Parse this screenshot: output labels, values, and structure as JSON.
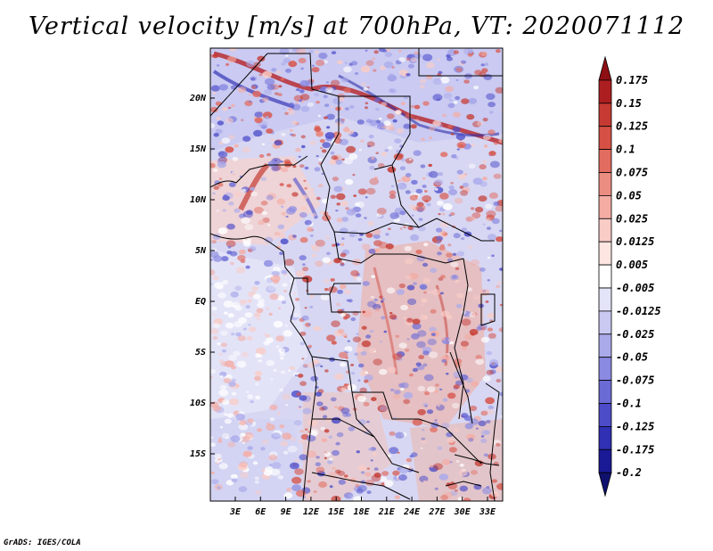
{
  "title": "Vertical velocity [m/s] at 700hPa, VT: 2020071112",
  "credit": "GrADS: IGES/COLA",
  "map": {
    "variable": "Vertical velocity",
    "units": "m/s",
    "level": "700hPa",
    "valid_time": "2020071112",
    "lat_labels": [
      "20N",
      "15N",
      "10N",
      "5N",
      "EQ",
      "5S",
      "10S",
      "15S"
    ],
    "lon_labels": [
      "3E",
      "6E",
      "9E",
      "12E",
      "15E",
      "18E",
      "21E",
      "24E",
      "27E",
      "30E",
      "33E"
    ]
  },
  "colorbar": {
    "labels": [
      "0.175",
      "0.15",
      "0.125",
      "0.1",
      "0.075",
      "0.05",
      "0.025",
      "0.0125",
      "0.005",
      "-0.005",
      "-0.0125",
      "-0.025",
      "-0.05",
      "-0.075",
      "-0.1",
      "-0.125",
      "-0.175",
      "-0.2"
    ],
    "colors": [
      "#8e0f14",
      "#ad1e20",
      "#c53a32",
      "#d65045",
      "#e26c60",
      "#ec8d82",
      "#f4aca3",
      "#f9ccc6",
      "#fde6e2",
      "#ffffff",
      "#e4e4f8",
      "#c9c9f2",
      "#aaaaeb",
      "#8a8ae2",
      "#6b6bd6",
      "#4c4cc9",
      "#3030b4",
      "#1a1a96",
      "#10106e"
    ]
  }
}
